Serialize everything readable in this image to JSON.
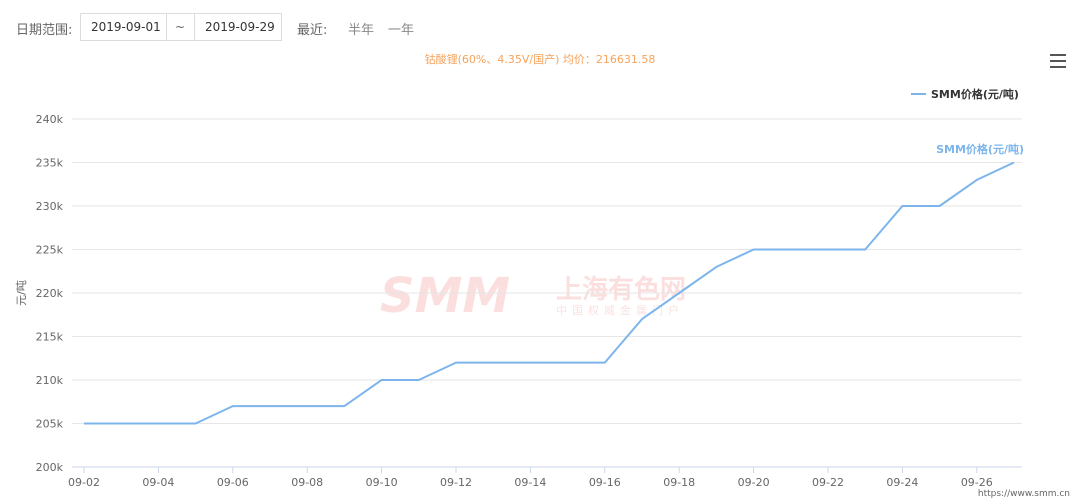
{
  "toolbar": {
    "date_range_label": "日期范围:",
    "start_date": "2019-09-01",
    "separator": "~",
    "end_date": "2019-09-29",
    "recent_label": "最近:",
    "half_year": "半年",
    "one_year": "一年"
  },
  "watermark": {
    "logo": "SMM",
    "name": "上海有色网",
    "slogan": "中国权威金属门户"
  },
  "source_url": "https://www.smm.cn",
  "chart_data": {
    "type": "line",
    "title": "钴酸锂(60%、4.35V/国产) 均价：216631.58",
    "ylabel": "元/吨",
    "xlabel": "",
    "ylim": [
      200000,
      240000
    ],
    "yticks": [
      "200k",
      "205k",
      "210k",
      "215k",
      "220k",
      "225k",
      "230k",
      "235k",
      "240k"
    ],
    "xtick_labels": [
      "09-02",
      "09-04",
      "09-06",
      "09-08",
      "09-10",
      "09-12",
      "09-14",
      "09-16",
      "09-18",
      "09-20",
      "09-22",
      "09-24",
      "09-26"
    ],
    "legend_position": "top-right",
    "grid": true,
    "series": [
      {
        "name": "SMM价格(元/吨)",
        "color": "#7cb5ec",
        "x": [
          "09-02",
          "09-03",
          "09-04",
          "09-05",
          "09-06",
          "09-07",
          "09-08",
          "09-09",
          "09-10",
          "09-11",
          "09-12",
          "09-13",
          "09-14",
          "09-15",
          "09-16",
          "09-17",
          "09-18",
          "09-19",
          "09-20",
          "09-21",
          "09-22",
          "09-23",
          "09-24",
          "09-25",
          "09-26",
          "09-27"
        ],
        "values": [
          205000,
          205000,
          205000,
          205000,
          207000,
          207000,
          207000,
          207000,
          210000,
          210000,
          212000,
          212000,
          212000,
          212000,
          212000,
          217000,
          220000,
          223000,
          225000,
          225000,
          225000,
          225000,
          230000,
          230000,
          233000,
          235000
        ]
      }
    ],
    "end_label": "SMM价格(元/吨)",
    "accent_title_color": "#f7a35c"
  }
}
